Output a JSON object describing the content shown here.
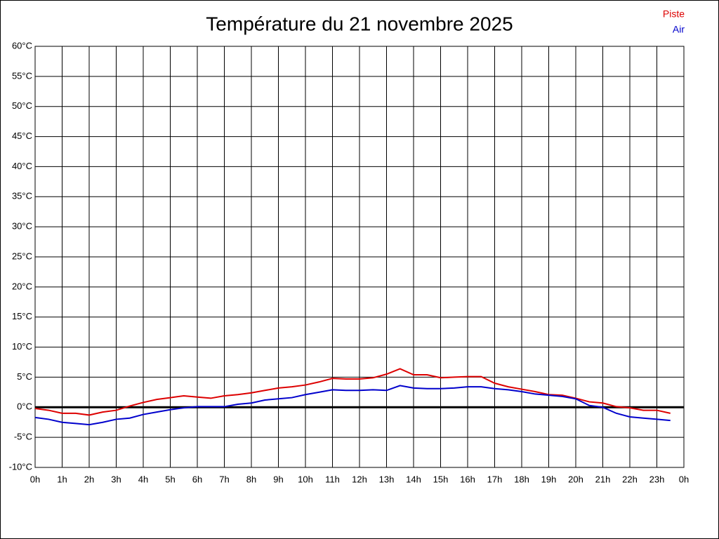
{
  "chart_data": {
    "type": "line",
    "title": "Température du 21 novembre 2025",
    "x": [
      0,
      0.5,
      1,
      1.5,
      2,
      2.5,
      3,
      3.5,
      4,
      4.5,
      5,
      5.5,
      6,
      6.5,
      7,
      7.5,
      8,
      8.5,
      9,
      9.5,
      10,
      10.5,
      11,
      11.5,
      12,
      12.5,
      13,
      13.5,
      14,
      14.5,
      15,
      15.5,
      16,
      16.5,
      17,
      17.5,
      18,
      18.5,
      19,
      19.5,
      20,
      20.5,
      21,
      21.5,
      22,
      22.5,
      23,
      23.5
    ],
    "series": [
      {
        "name": "Piste",
        "color": "#dd0000",
        "values": [
          -0.2,
          -0.5,
          -1,
          -1,
          -1.3,
          -0.8,
          -0.5,
          0.2,
          0.8,
          1.3,
          1.6,
          1.9,
          1.7,
          1.5,
          1.9,
          2.1,
          2.4,
          2.8,
          3.2,
          3.4,
          3.7,
          4.2,
          4.8,
          4.7,
          4.7,
          4.9,
          5.5,
          6.4,
          5.4,
          5.4,
          4.9,
          5,
          5.1,
          5.1,
          4,
          3.4,
          3,
          2.6,
          2.1,
          2,
          1.5,
          0.9,
          0.7,
          0.1,
          -0.1,
          -0.5,
          -0.5,
          -1
        ]
      },
      {
        "name": "Air",
        "color": "#0000cc",
        "values": [
          -1.7,
          -2,
          -2.5,
          -2.7,
          -2.9,
          -2.5,
          -2,
          -1.8,
          -1.2,
          -0.8,
          -0.4,
          -0.1,
          0.1,
          0.1,
          0.1,
          0.5,
          0.7,
          1.2,
          1.4,
          1.6,
          2.1,
          2.5,
          2.9,
          2.8,
          2.8,
          2.9,
          2.8,
          3.6,
          3.2,
          3.1,
          3.1,
          3.2,
          3.4,
          3.4,
          3.1,
          2.9,
          2.6,
          2.2,
          2,
          1.8,
          1.4,
          0.3,
          0,
          -1,
          -1.6,
          -1.8,
          -2,
          -2.2
        ]
      }
    ],
    "xlim": [
      0,
      24
    ],
    "xticks": [
      {
        "value": 0,
        "label": "0h"
      },
      {
        "value": 1,
        "label": "1h"
      },
      {
        "value": 2,
        "label": "2h"
      },
      {
        "value": 3,
        "label": "3h"
      },
      {
        "value": 4,
        "label": "4h"
      },
      {
        "value": 5,
        "label": "5h"
      },
      {
        "value": 6,
        "label": "6h"
      },
      {
        "value": 7,
        "label": "7h"
      },
      {
        "value": 8,
        "label": "8h"
      },
      {
        "value": 9,
        "label": "9h"
      },
      {
        "value": 10,
        "label": "10h"
      },
      {
        "value": 11,
        "label": "11h"
      },
      {
        "value": 12,
        "label": "12h"
      },
      {
        "value": 13,
        "label": "13h"
      },
      {
        "value": 14,
        "label": "14h"
      },
      {
        "value": 15,
        "label": "15h"
      },
      {
        "value": 16,
        "label": "16h"
      },
      {
        "value": 17,
        "label": "17h"
      },
      {
        "value": 18,
        "label": "18h"
      },
      {
        "value": 19,
        "label": "19h"
      },
      {
        "value": 20,
        "label": "20h"
      },
      {
        "value": 21,
        "label": "21h"
      },
      {
        "value": 22,
        "label": "22h"
      },
      {
        "value": 23,
        "label": "23h"
      },
      {
        "value": 24,
        "label": "0h"
      }
    ],
    "ylim": [
      -10,
      60
    ],
    "yticks": [
      {
        "value": -10,
        "label": "-10°C"
      },
      {
        "value": -5,
        "label": "-5°C"
      },
      {
        "value": 0,
        "label": "0°C"
      },
      {
        "value": 5,
        "label": "5°C"
      },
      {
        "value": 10,
        "label": "10°C"
      },
      {
        "value": 15,
        "label": "15°C"
      },
      {
        "value": 20,
        "label": "20°C"
      },
      {
        "value": 25,
        "label": "25°C"
      },
      {
        "value": 30,
        "label": "30°C"
      },
      {
        "value": 35,
        "label": "35°C"
      },
      {
        "value": 40,
        "label": "40°C"
      },
      {
        "value": 45,
        "label": "45°C"
      },
      {
        "value": 50,
        "label": "50°C"
      },
      {
        "value": 55,
        "label": "55°C"
      },
      {
        "value": 60,
        "label": "60°C"
      }
    ],
    "grid": true,
    "legend": "top-right"
  }
}
